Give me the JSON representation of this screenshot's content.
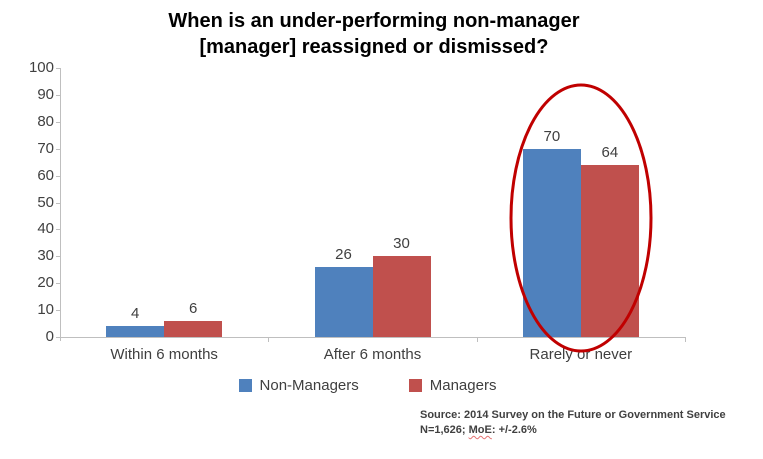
{
  "chart_data": {
    "type": "bar",
    "title": "When is an under-performing non-manager\n[manager] reassigned or dismissed?",
    "categories": [
      "Within 6 months",
      "After 6 months",
      "Rarely or never"
    ],
    "series": [
      {
        "name": "Non-Managers",
        "color": "#4F81BD",
        "values": [
          4,
          26,
          70
        ]
      },
      {
        "name": "Managers",
        "color": "#C0504D",
        "values": [
          6,
          30,
          64
        ]
      }
    ],
    "ylim": [
      0,
      100
    ],
    "ytick_step": 10,
    "grid": false,
    "data_labels": true,
    "legend_position": "bottom",
    "annotation": {
      "shape": "ellipse",
      "target_category": "Rarely or never",
      "color": "#C00000"
    }
  },
  "footnote": {
    "line1": "Source: 2014 Survey on the Future or Government Service",
    "line2_prefix": "N=1,626; ",
    "line2_flagged": "MoE",
    "line2_suffix": ": +/-2.6%"
  },
  "colors": {
    "axis": "#BFBFBF",
    "label_text": "#3F3F3F",
    "title_text": "#000000"
  }
}
